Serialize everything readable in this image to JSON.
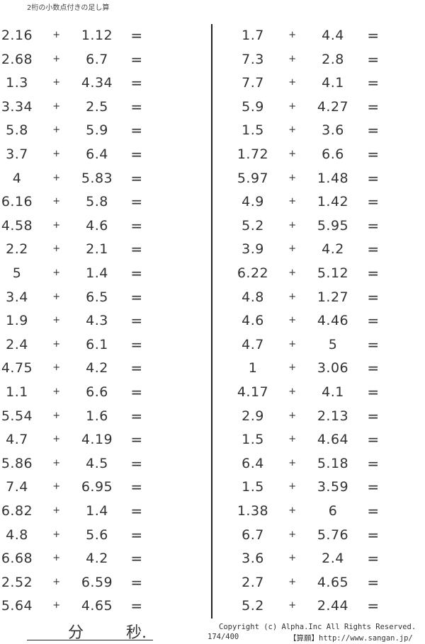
{
  "title": "2桁の小数点付きの足し算",
  "operator": "+",
  "equals": "=",
  "left_problems": [
    [
      "2.16",
      "1.12"
    ],
    [
      "2.68",
      "6.7"
    ],
    [
      "1.3",
      "4.34"
    ],
    [
      "3.34",
      "2.5"
    ],
    [
      "5.8",
      "5.9"
    ],
    [
      "3.7",
      "6.4"
    ],
    [
      "4",
      "5.83"
    ],
    [
      "6.16",
      "5.8"
    ],
    [
      "4.58",
      "4.6"
    ],
    [
      "2.2",
      "2.1"
    ],
    [
      "5",
      "1.4"
    ],
    [
      "3.4",
      "6.5"
    ],
    [
      "1.9",
      "4.3"
    ],
    [
      "2.4",
      "6.1"
    ],
    [
      "4.75",
      "4.2"
    ],
    [
      "1.1",
      "6.6"
    ],
    [
      "5.54",
      "1.6"
    ],
    [
      "4.7",
      "4.19"
    ],
    [
      "5.86",
      "4.5"
    ],
    [
      "7.4",
      "6.95"
    ],
    [
      "6.82",
      "1.4"
    ],
    [
      "4.8",
      "5.6"
    ],
    [
      "6.68",
      "4.2"
    ],
    [
      "2.52",
      "6.59"
    ],
    [
      "5.64",
      "4.65"
    ]
  ],
  "right_problems": [
    [
      "1.7",
      "4.4"
    ],
    [
      "7.3",
      "2.8"
    ],
    [
      "7.7",
      "4.1"
    ],
    [
      "5.9",
      "4.27"
    ],
    [
      "1.5",
      "3.6"
    ],
    [
      "1.72",
      "6.6"
    ],
    [
      "5.97",
      "1.48"
    ],
    [
      "4.9",
      "1.42"
    ],
    [
      "5.2",
      "5.95"
    ],
    [
      "3.9",
      "4.2"
    ],
    [
      "6.22",
      "5.12"
    ],
    [
      "4.8",
      "1.27"
    ],
    [
      "4.6",
      "4.46"
    ],
    [
      "4.7",
      "5"
    ],
    [
      "1",
      "3.06"
    ],
    [
      "4.17",
      "4.1"
    ],
    [
      "2.9",
      "2.13"
    ],
    [
      "1.5",
      "4.64"
    ],
    [
      "6.4",
      "5.18"
    ],
    [
      "1.5",
      "3.59"
    ],
    [
      "1.38",
      "6"
    ],
    [
      "6.7",
      "5.76"
    ],
    [
      "3.6",
      "2.4"
    ],
    [
      "2.7",
      "4.65"
    ],
    [
      "5.2",
      "2.44"
    ]
  ],
  "timer": {
    "minutes_label": "分",
    "seconds_label": "秒."
  },
  "footer": {
    "copyright": "Copyright (c)  Alpha.Inc All Rights Reserved.",
    "page": "174/400",
    "site": "【算願】http://www.sangan.jp/"
  }
}
